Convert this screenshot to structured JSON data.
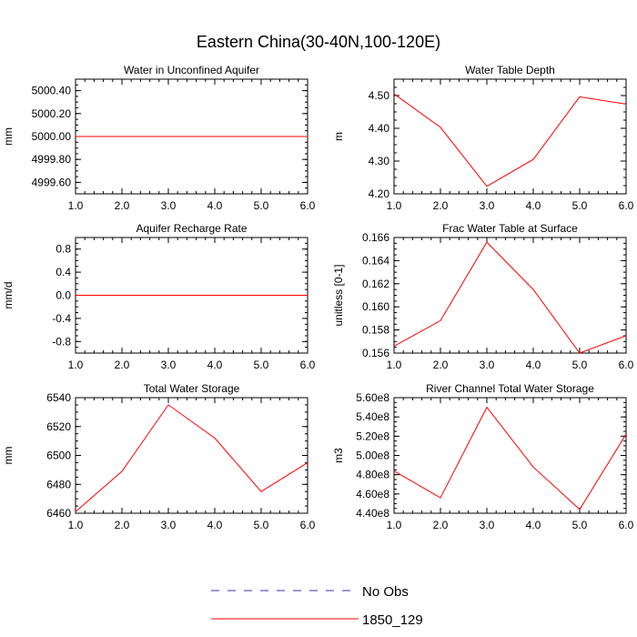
{
  "title": "Eastern China(30-40N,100-120E)",
  "colors": {
    "model": "#ff0000",
    "obs": "#3333aa",
    "axis": "#000000"
  },
  "legend": {
    "obs_label": "No Obs",
    "model_label": "1850_129"
  },
  "chart_data": [
    {
      "type": "line",
      "title": "Water in Unconfined Aquifer",
      "ylabel": "mm",
      "x": [
        1,
        2,
        3,
        4,
        5,
        6
      ],
      "xticks": [
        "1.0",
        "2.0",
        "3.0",
        "4.0",
        "5.0",
        "6.0"
      ],
      "ylim": [
        4999.5,
        5000.5
      ],
      "yticks": [
        {
          "v": 4999.6,
          "label": "4999.60"
        },
        {
          "v": 4999.8,
          "label": "4999.80"
        },
        {
          "v": 5000.0,
          "label": "5000.00"
        },
        {
          "v": 5000.2,
          "label": "5000.20"
        },
        {
          "v": 5000.4,
          "label": "5000.40"
        }
      ],
      "series": [
        {
          "name": "1850_129",
          "values": [
            5000.0,
            5000.0,
            5000.0,
            5000.0,
            5000.0,
            5000.0
          ]
        }
      ]
    },
    {
      "type": "line",
      "title": "Water Table Depth",
      "ylabel": "m",
      "x": [
        1,
        2,
        3,
        4,
        5,
        6
      ],
      "xticks": [
        "1.0",
        "2.0",
        "3.0",
        "4.0",
        "5.0",
        "6.0"
      ],
      "ylim": [
        4.2,
        4.55
      ],
      "yticks": [
        {
          "v": 4.2,
          "label": "4.20"
        },
        {
          "v": 4.3,
          "label": "4.30"
        },
        {
          "v": 4.4,
          "label": "4.40"
        },
        {
          "v": 4.5,
          "label": "4.50"
        }
      ],
      "series": [
        {
          "name": "1850_129",
          "values": [
            4.505,
            4.403,
            4.223,
            4.305,
            4.496,
            4.474
          ]
        }
      ]
    },
    {
      "type": "line",
      "title": "Aquifer Recharge Rate",
      "ylabel": "mm/d",
      "x": [
        1,
        2,
        3,
        4,
        5,
        6
      ],
      "xticks": [
        "1.0",
        "2.0",
        "3.0",
        "4.0",
        "5.0",
        "6.0"
      ],
      "ylim": [
        -1.0,
        1.0
      ],
      "yticks": [
        {
          "v": -0.8,
          "label": "-0.8"
        },
        {
          "v": -0.4,
          "label": "-0.4"
        },
        {
          "v": 0.0,
          "label": "0.0"
        },
        {
          "v": 0.4,
          "label": "0.4"
        },
        {
          "v": 0.8,
          "label": "0.8"
        }
      ],
      "series": [
        {
          "name": "1850_129",
          "values": [
            0.0,
            0.0,
            0.0,
            0.0,
            0.0,
            0.0
          ]
        }
      ]
    },
    {
      "type": "line",
      "title": "Frac Water Table at Surface",
      "ylabel": "unitless [0-1]",
      "x": [
        1,
        2,
        3,
        4,
        5,
        6
      ],
      "xticks": [
        "1.0",
        "2.0",
        "3.0",
        "4.0",
        "5.0",
        "6.0"
      ],
      "ylim": [
        0.156,
        0.166
      ],
      "yticks": [
        {
          "v": 0.156,
          "label": "0.156"
        },
        {
          "v": 0.158,
          "label": "0.158"
        },
        {
          "v": 0.16,
          "label": "0.160"
        },
        {
          "v": 0.162,
          "label": "0.162"
        },
        {
          "v": 0.164,
          "label": "0.164"
        },
        {
          "v": 0.166,
          "label": "0.166"
        }
      ],
      "series": [
        {
          "name": "1850_129",
          "values": [
            0.1566,
            0.1588,
            0.1656,
            0.1615,
            0.156,
            0.1575
          ]
        }
      ]
    },
    {
      "type": "line",
      "title": "Total Water Storage",
      "ylabel": "mm",
      "x": [
        1,
        2,
        3,
        4,
        5,
        6
      ],
      "xticks": [
        "1.0",
        "2.0",
        "3.0",
        "4.0",
        "5.0",
        "6.0"
      ],
      "ylim": [
        6460,
        6540
      ],
      "yticks": [
        {
          "v": 6460,
          "label": "6460"
        },
        {
          "v": 6480,
          "label": "6480"
        },
        {
          "v": 6500,
          "label": "6500"
        },
        {
          "v": 6520,
          "label": "6520"
        },
        {
          "v": 6540,
          "label": "6540"
        }
      ],
      "series": [
        {
          "name": "1850_129",
          "values": [
            6461,
            6489,
            6535,
            6512,
            6475,
            6495
          ]
        }
      ]
    },
    {
      "type": "line",
      "title": "River Channel Total Water Storage",
      "ylabel": "m3",
      "x": [
        1,
        2,
        3,
        4,
        5,
        6
      ],
      "xticks": [
        "1.0",
        "2.0",
        "3.0",
        "4.0",
        "5.0",
        "6.0"
      ],
      "ylim": [
        440000000.0,
        560000000.0
      ],
      "yticks": [
        {
          "v": 440000000.0,
          "label": "4.40e8"
        },
        {
          "v": 460000000.0,
          "label": "4.60e8"
        },
        {
          "v": 480000000.0,
          "label": "4.80e8"
        },
        {
          "v": 500000000.0,
          "label": "5.00e8"
        },
        {
          "v": 520000000.0,
          "label": "5.20e8"
        },
        {
          "v": 540000000.0,
          "label": "5.40e8"
        },
        {
          "v": 560000000.0,
          "label": "5.60e8"
        }
      ],
      "series": [
        {
          "name": "1850_129",
          "values": [
            484000000.0,
            456000000.0,
            550000000.0,
            488000000.0,
            444000000.0,
            522000000.0
          ]
        }
      ]
    }
  ]
}
